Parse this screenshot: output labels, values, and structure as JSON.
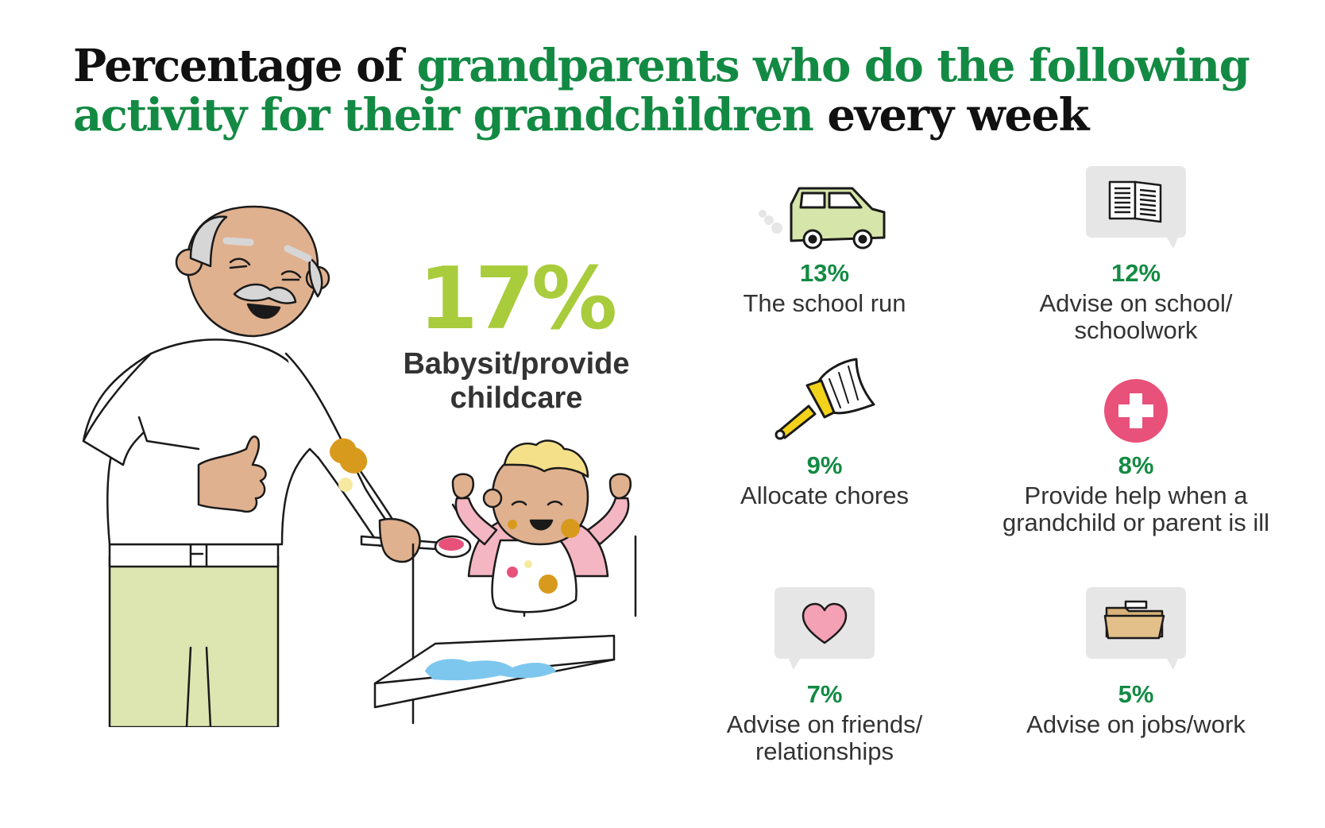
{
  "title": {
    "part1": "Percentage of ",
    "part2": "grandparents who do the following activity for their grandchildren",
    "part3": " every week"
  },
  "colors": {
    "green": "#138a43",
    "lime": "#a9cc3c",
    "text": "#333333",
    "pink": "#e8517a"
  },
  "illustration": {
    "name": "grandfather-feeding-baby"
  },
  "headline_stat": {
    "percent": "17%",
    "label": "Babysit/provide childcare"
  },
  "stats": [
    {
      "icon": "car-icon",
      "percent": "13%",
      "label": "The school run"
    },
    {
      "icon": "book-speech-bubble-icon",
      "percent": "12%",
      "label": "Advise on school/ schoolwork"
    },
    {
      "icon": "broom-icon",
      "percent": "9%",
      "label": "Allocate chores"
    },
    {
      "icon": "medical-cross-icon",
      "percent": "8%",
      "label": "Provide help when a grandchild or parent is ill"
    },
    {
      "icon": "heart-speech-bubble-icon",
      "percent": "7%",
      "label": "Advise on friends/ relationships"
    },
    {
      "icon": "folder-speech-bubble-icon",
      "percent": "5%",
      "label": "Advise on jobs/work"
    }
  ]
}
